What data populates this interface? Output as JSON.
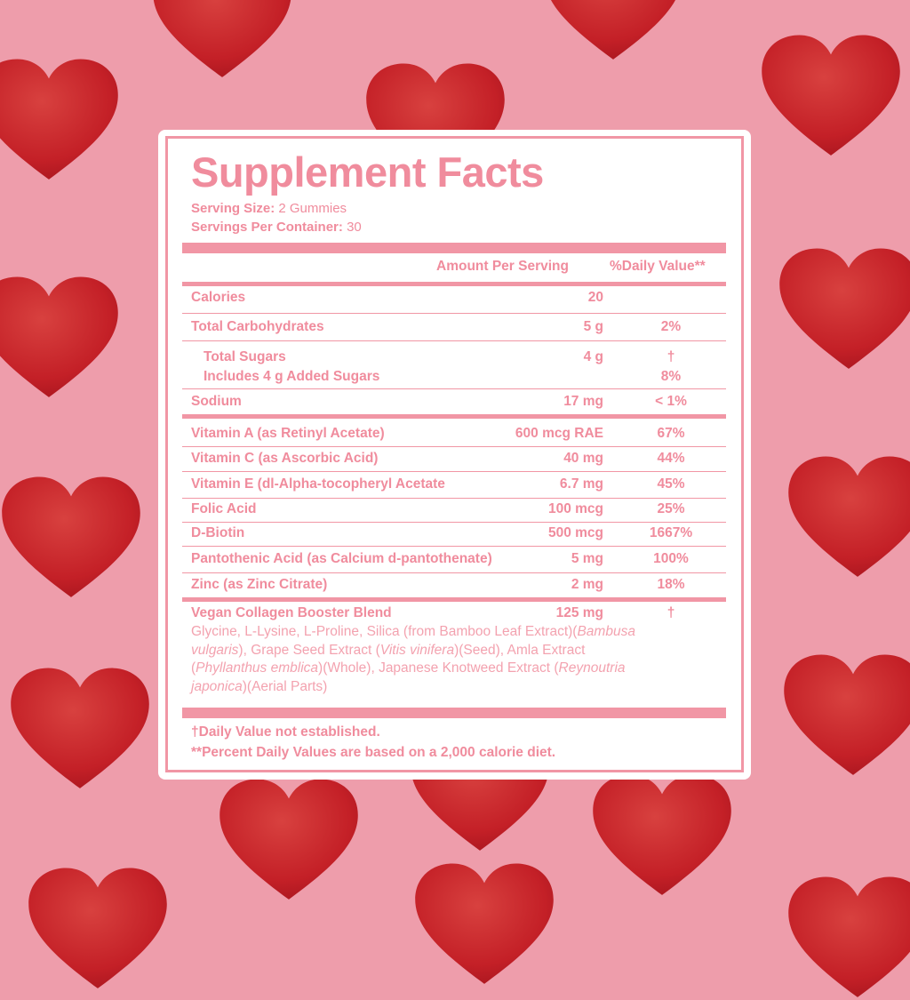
{
  "colors": {
    "background": "#ee9dab",
    "label_pink": "#f08c9d",
    "heart_red": "#c8212a"
  },
  "title": "Supplement Facts",
  "serving_size_label": "Serving Size:",
  "serving_size": "2 Gummies",
  "servings_label": "Servings Per Container:",
  "servings": "30",
  "header": {
    "amount": "Amount Per Serving",
    "dv": "%Daily Value**"
  },
  "rows": [
    {
      "name": "Calories",
      "amount": "20",
      "dv": ""
    },
    {
      "name": "Total Carbohydrates",
      "amount": "5 g",
      "dv": "2%"
    },
    {
      "name": "Total Sugars",
      "amount": "4 g",
      "dv": "†"
    },
    {
      "name": "Includes 4 g Added Sugars",
      "amount": "",
      "dv": "8%"
    },
    {
      "name": "Sodium",
      "amount": "17 mg",
      "dv": "< 1%"
    },
    {
      "name": "Vitamin A (as Retinyl Acetate)",
      "amount": "600 mcg RAE",
      "dv": "67%"
    },
    {
      "name": "Vitamin C (as Ascorbic Acid)",
      "amount": "40 mg",
      "dv": "44%"
    },
    {
      "name": "Vitamin E (dl-Alpha-tocopheryl Acetate",
      "amount": "6.7 mg",
      "dv": "45%"
    },
    {
      "name": "Folic Acid",
      "amount": "100 mcg",
      "dv": "25%"
    },
    {
      "name": "D-Biotin",
      "amount": "500 mcg",
      "dv": "1667%"
    },
    {
      "name": "Pantothenic Acid (as Calcium d-pantothenate)",
      "amount": "5 mg",
      "dv": "100%"
    },
    {
      "name": "Zinc (as Zinc Citrate)",
      "amount": "2 mg",
      "dv": "18%"
    },
    {
      "name": "Vegan Collagen Booster Blend",
      "amount": "125 mg",
      "dv": "†"
    }
  ],
  "blend": {
    "t1": "Glycine, L-Lysine, L-Proline, Silica (from Bamboo Leaf Extract)(",
    "i1": "Bambusa vulgaris",
    "t2": "), Grape Seed Extract (",
    "i2": "Vitis vinifera",
    "t3": ")(Seed), Amla Extract (",
    "i3": "Phyllanthus emblica",
    "t4": ")(Whole), Japanese Knotweed Extract (",
    "i4": "Reynoutria japonica",
    "t5": ")(Aerial Parts)"
  },
  "footnotes": [
    "†Daily Value not established.",
    "**Percent Daily Values are based on a 2,000 calorie diet."
  ]
}
